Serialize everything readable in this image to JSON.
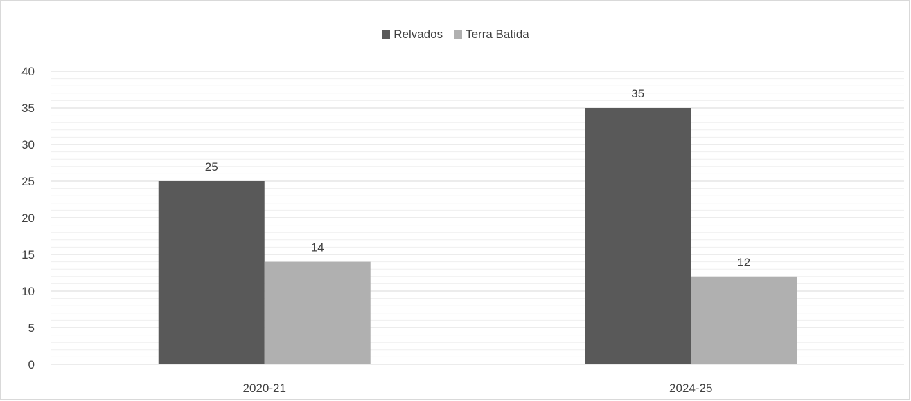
{
  "colors": {
    "relvados": "#595959",
    "terra_batida": "#b0b0b0",
    "gridline": "#d9d9d9",
    "minor_gridline": "#efefef",
    "text": "#404040"
  },
  "legend": {
    "items": [
      {
        "label": "Relvados",
        "color": "#595959"
      },
      {
        "label": "Terra Batida",
        "color": "#b0b0b0"
      }
    ]
  },
  "chart_data": {
    "type": "bar",
    "title": "",
    "xlabel": "",
    "ylabel": "",
    "categories": [
      "2020-21",
      "2024-25"
    ],
    "series": [
      {
        "name": "Relvados",
        "values": [
          25,
          35
        ]
      },
      {
        "name": "Terra Batida",
        "values": [
          14,
          12
        ]
      }
    ],
    "ylim": [
      0,
      40
    ],
    "yticks": [
      "0",
      "5",
      "10",
      "15",
      "20",
      "25",
      "30",
      "35",
      "40"
    ],
    "data_labels": true,
    "grid": true,
    "minor_grid": true,
    "legend_position": "top-center"
  }
}
